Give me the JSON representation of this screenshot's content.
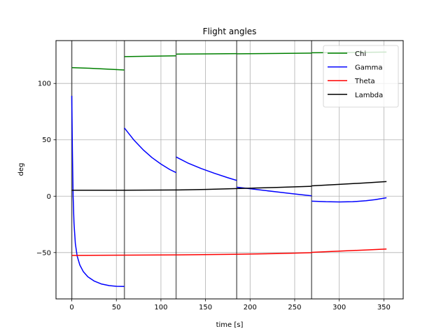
{
  "chart_data": {
    "type": "line",
    "title": "Flight angles",
    "xlabel": "time [s]",
    "ylabel": "deg",
    "xlim": [
      -17.7,
      371.7
    ],
    "ylim": [
      -91.1,
      138.0
    ],
    "xticks": [
      0,
      50,
      100,
      150,
      200,
      250,
      300,
      350
    ],
    "yticks": [
      -50,
      0,
      50,
      100
    ],
    "grid": true,
    "legend_position": "top-right",
    "phase_boundaries": [
      0,
      59,
      117,
      185,
      269
    ],
    "series": [
      {
        "name": "Chi",
        "color": "#008000",
        "segments": [
          [
            [
              0,
              114
            ],
            [
              20,
              113.5
            ],
            [
              40,
              112.7
            ],
            [
              59,
              111.9
            ]
          ],
          [
            [
              59,
              123.8
            ],
            [
              90,
              124.2
            ],
            [
              117,
              124.5
            ]
          ],
          [
            [
              117,
              126.0
            ],
            [
              150,
              126.2
            ],
            [
              185,
              126.4
            ]
          ],
          [
            [
              185,
              126.3
            ],
            [
              230,
              126.6
            ],
            [
              269,
              126.9
            ]
          ],
          [
            [
              269,
              127.2
            ],
            [
              300,
              127.4
            ],
            [
              330,
              127.6
            ],
            [
              353,
              127.8
            ]
          ]
        ]
      },
      {
        "name": "Gamma",
        "color": "#0000ff",
        "segments": [
          [
            [
              0,
              89
            ],
            [
              0.7,
              40
            ],
            [
              1.5,
              0
            ],
            [
              2.5,
              -24
            ],
            [
              4,
              -42
            ],
            [
              6,
              -53
            ],
            [
              9,
              -61
            ],
            [
              13,
              -67
            ],
            [
              18,
              -71.5
            ],
            [
              25,
              -75.2
            ],
            [
              33,
              -77.8
            ],
            [
              42,
              -79.3
            ],
            [
              50,
              -79.9
            ],
            [
              59,
              -80.1
            ]
          ],
          [
            [
              59,
              60.5
            ],
            [
              70,
              49.5
            ],
            [
              80,
              41.2
            ],
            [
              90,
              34.2
            ],
            [
              100,
              28.5
            ],
            [
              110,
              23.6
            ],
            [
              117,
              20.9
            ]
          ],
          [
            [
              117,
              34.8
            ],
            [
              130,
              29.5
            ],
            [
              145,
              24.6
            ],
            [
              160,
              20.3
            ],
            [
              175,
              16.4
            ],
            [
              185,
              14.0
            ]
          ],
          [
            [
              185,
              8.0
            ],
            [
              200,
              6.6
            ],
            [
              215,
              5.2
            ],
            [
              230,
              3.8
            ],
            [
              245,
              2.4
            ],
            [
              260,
              1.1
            ],
            [
              269,
              0.3
            ]
          ],
          [
            [
              269,
              -4.4
            ],
            [
              285,
              -4.9
            ],
            [
              300,
              -5.1
            ],
            [
              315,
              -4.9
            ],
            [
              330,
              -4.0
            ],
            [
              340,
              -3.1
            ],
            [
              353,
              -1.4
            ]
          ]
        ]
      },
      {
        "name": "Theta",
        "color": "#ff0000",
        "segments": [
          [
            [
              0,
              -52.5
            ],
            [
              59,
              -52.3
            ],
            [
              117,
              -52.1
            ],
            [
              185,
              -51.5
            ],
            [
              230,
              -50.9
            ],
            [
              269,
              -50.1
            ]
          ],
          [
            [
              269,
              -49.8
            ],
            [
              300,
              -48.7
            ],
            [
              330,
              -47.7
            ],
            [
              353,
              -46.9
            ]
          ]
        ]
      },
      {
        "name": "Lambda",
        "color": "#000000",
        "segments": [
          [
            [
              0,
              5.3
            ],
            [
              59,
              5.3
            ],
            [
              117,
              5.5
            ],
            [
              150,
              6.0
            ],
            [
              185,
              6.8
            ],
            [
              230,
              7.8
            ],
            [
              269,
              8.8
            ]
          ],
          [
            [
              269,
              9.2
            ],
            [
              300,
              10.5
            ],
            [
              330,
              11.8
            ],
            [
              353,
              13.0
            ]
          ]
        ]
      }
    ]
  }
}
